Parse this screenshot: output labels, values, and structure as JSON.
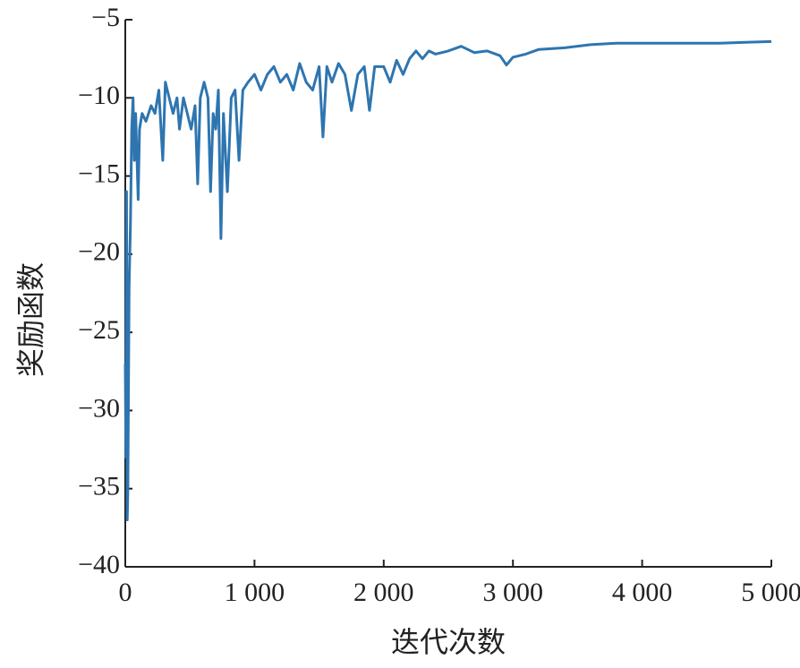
{
  "chart_data": {
    "type": "line",
    "xlabel": "迭代次数",
    "ylabel": "奖励函数",
    "xlim": [
      0,
      5000
    ],
    "ylim": [
      -40,
      -5
    ],
    "xticks": [
      0,
      {
        "value": 1000,
        "label": "1 000"
      },
      {
        "value": 2000,
        "label": "2 000"
      },
      {
        "value": 3000,
        "label": "3 000"
      },
      {
        "value": 4000,
        "label": "4 000"
      },
      {
        "value": 5000,
        "label": "5 000"
      }
    ],
    "yticks": [
      {
        "value": -40,
        "label": "−40"
      },
      {
        "value": -35,
        "label": "−35"
      },
      {
        "value": -30,
        "label": "−30"
      },
      {
        "value": -25,
        "label": "−25"
      },
      {
        "value": -20,
        "label": "−20"
      },
      {
        "value": -15,
        "label": "−15"
      },
      {
        "value": -10,
        "label": "−10"
      },
      {
        "value": -5,
        "label": "−5"
      }
    ],
    "series": [
      {
        "color": "#2e75b0",
        "x": [
          0,
          5,
          10,
          15,
          20,
          30,
          40,
          50,
          60,
          70,
          80,
          100,
          110,
          130,
          160,
          200,
          230,
          260,
          290,
          310,
          340,
          370,
          400,
          420,
          450,
          480,
          510,
          540,
          560,
          580,
          610,
          640,
          660,
          680,
          700,
          720,
          740,
          760,
          790,
          820,
          850,
          880,
          910,
          950,
          1000,
          1050,
          1100,
          1150,
          1200,
          1250,
          1300,
          1350,
          1400,
          1450,
          1500,
          1530,
          1560,
          1600,
          1650,
          1700,
          1750,
          1800,
          1850,
          1890,
          1930,
          2000,
          2050,
          2100,
          2150,
          2200,
          2250,
          2300,
          2350,
          2400,
          2500,
          2600,
          2700,
          2800,
          2900,
          2950,
          3000,
          3100,
          3200,
          3400,
          3600,
          3800,
          4000,
          4200,
          4400,
          4600,
          4800,
          5000
        ],
        "values": [
          -27,
          -33,
          -16,
          -37,
          -35,
          -22,
          -18,
          -12,
          -10,
          -14,
          -11,
          -16.5,
          -12,
          -11,
          -11.5,
          -10.5,
          -11,
          -9.5,
          -14,
          -9,
          -10,
          -11,
          -10,
          -12,
          -10,
          -11,
          -12,
          -10.5,
          -15.5,
          -10,
          -9,
          -10,
          -16,
          -11,
          -12,
          -9.5,
          -19,
          -11,
          -16,
          -10,
          -9.5,
          -14,
          -9.5,
          -9,
          -8.5,
          -9.5,
          -8.5,
          -8,
          -9,
          -8.5,
          -9.5,
          -7.8,
          -9,
          -9.5,
          -8,
          -12.5,
          -8,
          -9,
          -7.8,
          -8.5,
          -10.8,
          -8.5,
          -8,
          -10.8,
          -8,
          -8,
          -9,
          -7.6,
          -8.5,
          -7.5,
          -7,
          -7.5,
          -7,
          -7.2,
          -7,
          -6.7,
          -7.1,
          -7,
          -7.3,
          -7.9,
          -7.4,
          -7.2,
          -6.9,
          -6.8,
          -6.6,
          -6.5,
          -6.5,
          -6.5,
          -6.5,
          -6.5,
          -6.45,
          -6.4
        ]
      }
    ]
  }
}
